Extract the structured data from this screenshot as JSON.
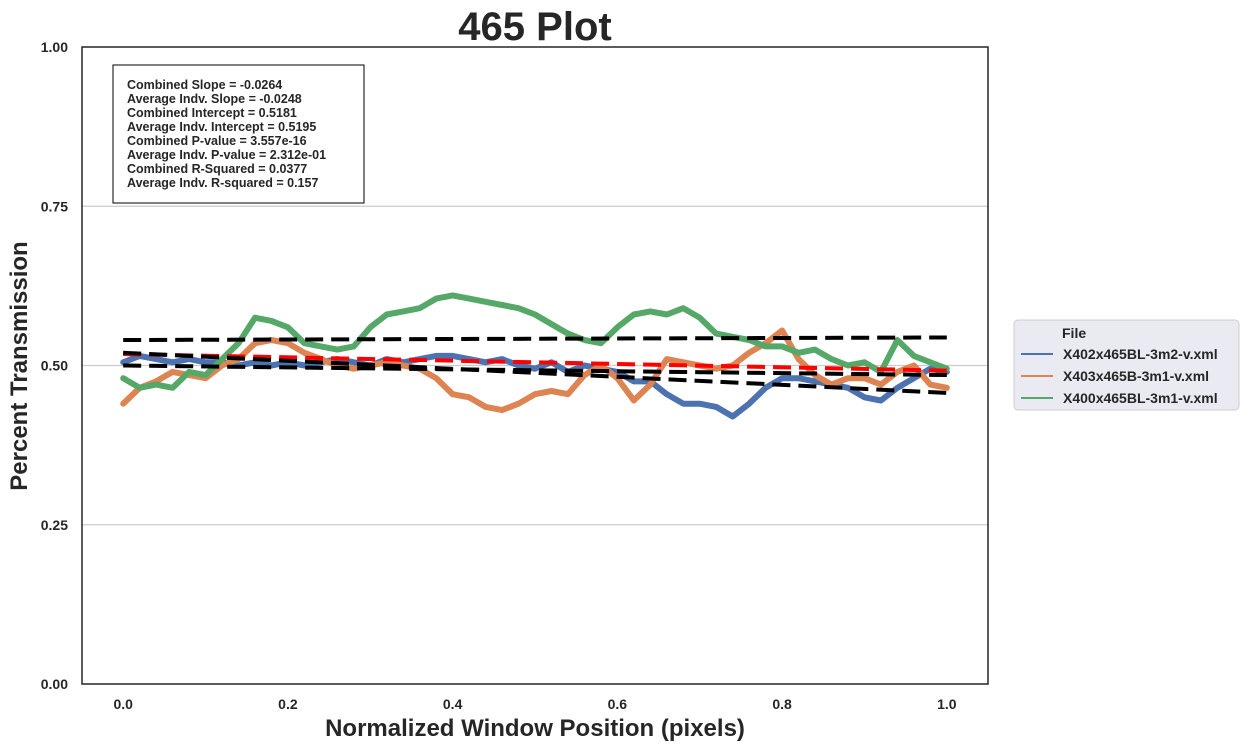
{
  "chart_data": {
    "type": "line",
    "title": "465 Plot",
    "xlabel": "Normalized Window Position (pixels)",
    "ylabel": "Percent Transmission",
    "xlim": [
      -0.05,
      1.05
    ],
    "ylim": [
      0.0,
      1.0
    ],
    "xticks": [
      0.0,
      0.2,
      0.4,
      0.6,
      0.8,
      1.0
    ],
    "xtick_labels": [
      "0.0",
      "0.2",
      "0.4",
      "0.6",
      "0.8",
      "1.0"
    ],
    "yticks": [
      0.0,
      0.25,
      0.5,
      0.75,
      1.0
    ],
    "ytick_labels": [
      "0.00",
      "0.25",
      "0.50",
      "0.75",
      "1.00"
    ],
    "grid": "horizontal",
    "stats": [
      "Combined Slope = -0.0264",
      "Average Indv. Slope = -0.0248",
      "Combined Intercept = 0.5181",
      "Average Indv. Intercept = 0.5195",
      "Combined P-value = 3.557e-16",
      "Average Indv. P-value = 2.312e-01",
      "Combined R-Squared = 0.0377",
      "Average Indv. R-squared = 0.157"
    ],
    "legend": {
      "title": "File",
      "placement": "right"
    },
    "series": [
      {
        "name": "X402x465BL-3m2-v.xml",
        "color": "#4c72b0",
        "x": [
          0.0,
          0.02,
          0.04,
          0.06,
          0.08,
          0.1,
          0.12,
          0.14,
          0.16,
          0.18,
          0.2,
          0.22,
          0.24,
          0.26,
          0.28,
          0.3,
          0.32,
          0.34,
          0.36,
          0.38,
          0.4,
          0.42,
          0.44,
          0.46,
          0.48,
          0.5,
          0.52,
          0.54,
          0.56,
          0.58,
          0.6,
          0.62,
          0.64,
          0.66,
          0.68,
          0.7,
          0.72,
          0.74,
          0.76,
          0.78,
          0.8,
          0.82,
          0.84,
          0.86,
          0.88,
          0.9,
          0.92,
          0.94,
          0.96,
          0.98,
          1.0
        ],
        "y": [
          0.505,
          0.515,
          0.51,
          0.505,
          0.51,
          0.505,
          0.505,
          0.5,
          0.505,
          0.5,
          0.505,
          0.5,
          0.505,
          0.51,
          0.505,
          0.5,
          0.51,
          0.505,
          0.51,
          0.515,
          0.515,
          0.51,
          0.505,
          0.51,
          0.5,
          0.495,
          0.505,
          0.49,
          0.5,
          0.495,
          0.49,
          0.475,
          0.475,
          0.455,
          0.44,
          0.44,
          0.435,
          0.42,
          0.44,
          0.465,
          0.48,
          0.48,
          0.475,
          0.47,
          0.465,
          0.45,
          0.445,
          0.465,
          0.48,
          0.495,
          0.49
        ]
      },
      {
        "name": "X403x465B-3m1-v.xml",
        "color": "#dd8452",
        "x": [
          0.0,
          0.02,
          0.04,
          0.06,
          0.08,
          0.1,
          0.12,
          0.14,
          0.16,
          0.18,
          0.2,
          0.22,
          0.24,
          0.26,
          0.28,
          0.3,
          0.32,
          0.34,
          0.36,
          0.38,
          0.4,
          0.42,
          0.44,
          0.46,
          0.48,
          0.5,
          0.52,
          0.54,
          0.56,
          0.58,
          0.6,
          0.62,
          0.64,
          0.66,
          0.68,
          0.7,
          0.72,
          0.74,
          0.76,
          0.78,
          0.8,
          0.82,
          0.84,
          0.86,
          0.88,
          0.9,
          0.92,
          0.94,
          0.96,
          0.98,
          1.0
        ],
        "y": [
          0.44,
          0.465,
          0.475,
          0.49,
          0.485,
          0.48,
          0.5,
          0.51,
          0.535,
          0.54,
          0.535,
          0.52,
          0.51,
          0.5,
          0.495,
          0.5,
          0.505,
          0.5,
          0.495,
          0.48,
          0.455,
          0.45,
          0.435,
          0.43,
          0.44,
          0.455,
          0.46,
          0.455,
          0.485,
          0.5,
          0.48,
          0.445,
          0.47,
          0.51,
          0.505,
          0.5,
          0.495,
          0.5,
          0.52,
          0.535,
          0.555,
          0.51,
          0.485,
          0.47,
          0.48,
          0.48,
          0.47,
          0.49,
          0.5,
          0.47,
          0.465
        ]
      },
      {
        "name": "X400x465BL-3m1-v.xml",
        "color": "#55a868",
        "x": [
          0.0,
          0.02,
          0.04,
          0.06,
          0.08,
          0.1,
          0.12,
          0.14,
          0.16,
          0.18,
          0.2,
          0.22,
          0.24,
          0.26,
          0.28,
          0.3,
          0.32,
          0.34,
          0.36,
          0.38,
          0.4,
          0.42,
          0.44,
          0.46,
          0.48,
          0.5,
          0.52,
          0.54,
          0.56,
          0.58,
          0.6,
          0.62,
          0.64,
          0.66,
          0.68,
          0.7,
          0.72,
          0.74,
          0.76,
          0.78,
          0.8,
          0.82,
          0.84,
          0.86,
          0.88,
          0.9,
          0.92,
          0.94,
          0.96,
          0.98,
          1.0
        ],
        "y": [
          0.48,
          0.465,
          0.47,
          0.465,
          0.49,
          0.485,
          0.51,
          0.535,
          0.575,
          0.57,
          0.56,
          0.535,
          0.53,
          0.525,
          0.53,
          0.56,
          0.58,
          0.585,
          0.59,
          0.605,
          0.61,
          0.605,
          0.6,
          0.595,
          0.59,
          0.58,
          0.565,
          0.55,
          0.54,
          0.535,
          0.56,
          0.58,
          0.585,
          0.58,
          0.59,
          0.575,
          0.55,
          0.545,
          0.54,
          0.53,
          0.53,
          0.52,
          0.525,
          0.51,
          0.5,
          0.505,
          0.49,
          0.54,
          0.515,
          0.505,
          0.495
        ]
      }
    ],
    "fit_lines": [
      {
        "style": "dashed",
        "color": "#ff0000",
        "x": [
          0.0,
          1.0
        ],
        "y": [
          0.518,
          0.492
        ]
      },
      {
        "style": "dashed",
        "color": "#000000",
        "x": [
          0.0,
          1.0
        ],
        "y": [
          0.54,
          0.544
        ]
      },
      {
        "style": "dashed",
        "color": "#000000",
        "x": [
          0.0,
          1.0
        ],
        "y": [
          0.52,
          0.457
        ]
      },
      {
        "style": "dashed",
        "color": "#000000",
        "x": [
          0.0,
          1.0
        ],
        "y": [
          0.5,
          0.485
        ]
      }
    ]
  }
}
